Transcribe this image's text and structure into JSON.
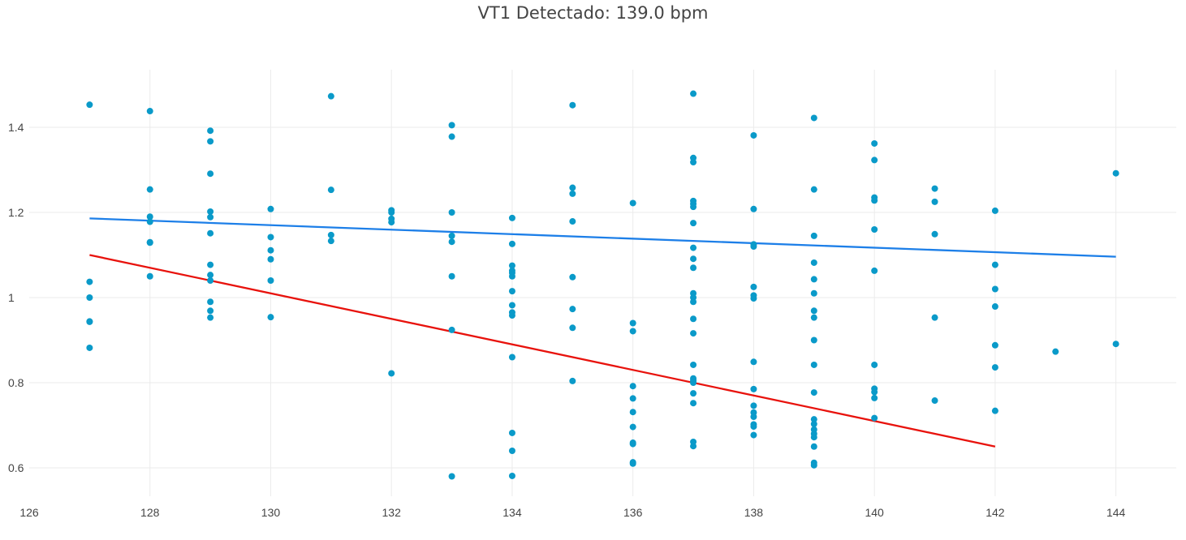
{
  "chart_data": {
    "type": "scatter",
    "title": "VT1 Detectado: 139.0 bpm",
    "xlabel": "",
    "ylabel": "",
    "xlim": [
      126,
      145
    ],
    "ylim": [
      0.56,
      1.54
    ],
    "x_ticks": [
      126,
      128,
      130,
      132,
      134,
      136,
      138,
      140,
      142,
      144
    ],
    "y_ticks": [
      0.6,
      0.8,
      1,
      1.2,
      1.4
    ],
    "x_tick_labels": [
      "126",
      "128",
      "130",
      "132",
      "134",
      "136",
      "138",
      "140",
      "142",
      "144"
    ],
    "y_tick_labels": [
      "0.6",
      "0.8",
      "1",
      "1.2",
      "1.4"
    ],
    "grid": true,
    "colors": {
      "points": "#0a9ac9",
      "blue_line": "#1d7fe8",
      "red_line": "#e8120c",
      "grid": "#ebebeb",
      "text": "#444444"
    },
    "points": [
      [
        127,
        1.453
      ],
      [
        127,
        1.037
      ],
      [
        127,
        1.0
      ],
      [
        127,
        0.943
      ],
      [
        127,
        0.944
      ],
      [
        127,
        0.882
      ],
      [
        128,
        1.438
      ],
      [
        128,
        1.254
      ],
      [
        128,
        1.19
      ],
      [
        128,
        1.178
      ],
      [
        128,
        1.13
      ],
      [
        128,
        1.129
      ],
      [
        128,
        1.05
      ],
      [
        129,
        1.392
      ],
      [
        129,
        1.367
      ],
      [
        129,
        1.291
      ],
      [
        129,
        1.202
      ],
      [
        129,
        1.189
      ],
      [
        129,
        1.151
      ],
      [
        129,
        1.077
      ],
      [
        129,
        1.053
      ],
      [
        129,
        1.04
      ],
      [
        129,
        0.99
      ],
      [
        129,
        0.969
      ],
      [
        129,
        0.953
      ],
      [
        130,
        1.208
      ],
      [
        130,
        1.142
      ],
      [
        130,
        1.111
      ],
      [
        130,
        1.09
      ],
      [
        130,
        1.04
      ],
      [
        130,
        0.954
      ],
      [
        131,
        1.473
      ],
      [
        131,
        1.253
      ],
      [
        131,
        1.147
      ],
      [
        131,
        1.133
      ],
      [
        132,
        1.205
      ],
      [
        132,
        1.2
      ],
      [
        132,
        1.185
      ],
      [
        132,
        1.177
      ],
      [
        132,
        0.822
      ],
      [
        133,
        1.405
      ],
      [
        133,
        1.378
      ],
      [
        133,
        1.2
      ],
      [
        133,
        1.145
      ],
      [
        133,
        1.131
      ],
      [
        133,
        1.05
      ],
      [
        133,
        0.924
      ],
      [
        133,
        0.58
      ],
      [
        134,
        1.187
      ],
      [
        134,
        1.126
      ],
      [
        134,
        1.075
      ],
      [
        134,
        1.063
      ],
      [
        134,
        1.058
      ],
      [
        134,
        1.05
      ],
      [
        134,
        1.015
      ],
      [
        134,
        0.982
      ],
      [
        134,
        0.965
      ],
      [
        134,
        0.958
      ],
      [
        134,
        0.86
      ],
      [
        134,
        0.682
      ],
      [
        134,
        0.64
      ],
      [
        134,
        0.581
      ],
      [
        135,
        1.452
      ],
      [
        135,
        1.258
      ],
      [
        135,
        1.244
      ],
      [
        135,
        1.179
      ],
      [
        135,
        1.048
      ],
      [
        135,
        0.973
      ],
      [
        135,
        0.929
      ],
      [
        135,
        0.804
      ],
      [
        136,
        1.222
      ],
      [
        136,
        0.94
      ],
      [
        136,
        0.921
      ],
      [
        136,
        0.792
      ],
      [
        136,
        0.763
      ],
      [
        136,
        0.731
      ],
      [
        136,
        0.696
      ],
      [
        136,
        0.659
      ],
      [
        136,
        0.656
      ],
      [
        136,
        0.613
      ],
      [
        136,
        0.61
      ],
      [
        137,
        1.479
      ],
      [
        137,
        1.328
      ],
      [
        137,
        1.318
      ],
      [
        137,
        1.227
      ],
      [
        137,
        1.22
      ],
      [
        137,
        1.213
      ],
      [
        137,
        1.175
      ],
      [
        137,
        1.117
      ],
      [
        137,
        1.091
      ],
      [
        137,
        1.07
      ],
      [
        137,
        1.01
      ],
      [
        137,
        1.0
      ],
      [
        137,
        0.99
      ],
      [
        137,
        0.95
      ],
      [
        137,
        0.916
      ],
      [
        137,
        0.842
      ],
      [
        137,
        0.81
      ],
      [
        137,
        0.805
      ],
      [
        137,
        0.8
      ],
      [
        137,
        0.775
      ],
      [
        137,
        0.752
      ],
      [
        137,
        0.661
      ],
      [
        137,
        0.651
      ],
      [
        138,
        1.381
      ],
      [
        138,
        1.208
      ],
      [
        138,
        1.125
      ],
      [
        138,
        1.12
      ],
      [
        138,
        1.025
      ],
      [
        138,
        1.005
      ],
      [
        138,
        0.998
      ],
      [
        138,
        0.849
      ],
      [
        138,
        0.785
      ],
      [
        138,
        0.746
      ],
      [
        138,
        0.73
      ],
      [
        138,
        0.72
      ],
      [
        138,
        0.702
      ],
      [
        138,
        0.697
      ],
      [
        138,
        0.677
      ],
      [
        139,
        1.422
      ],
      [
        139,
        1.254
      ],
      [
        139,
        1.145
      ],
      [
        139,
        1.082
      ],
      [
        139,
        1.043
      ],
      [
        139,
        1.01
      ],
      [
        139,
        0.969
      ],
      [
        139,
        0.953
      ],
      [
        139,
        0.9
      ],
      [
        139,
        0.842
      ],
      [
        139,
        0.777
      ],
      [
        139,
        0.714
      ],
      [
        139,
        0.703
      ],
      [
        139,
        0.69
      ],
      [
        139,
        0.68
      ],
      [
        139,
        0.672
      ],
      [
        139,
        0.65
      ],
      [
        139,
        0.612
      ],
      [
        139,
        0.606
      ],
      [
        140,
        1.362
      ],
      [
        140,
        1.323
      ],
      [
        140,
        1.235
      ],
      [
        140,
        1.228
      ],
      [
        140,
        1.16
      ],
      [
        140,
        1.063
      ],
      [
        140,
        0.842
      ],
      [
        140,
        0.786
      ],
      [
        140,
        0.778
      ],
      [
        140,
        0.764
      ],
      [
        140,
        0.717
      ],
      [
        141,
        1.256
      ],
      [
        141,
        1.225
      ],
      [
        141,
        1.149
      ],
      [
        141,
        0.953
      ],
      [
        141,
        0.758
      ],
      [
        142,
        1.204
      ],
      [
        142,
        1.077
      ],
      [
        142,
        1.02
      ],
      [
        142,
        0.979
      ],
      [
        142,
        0.888
      ],
      [
        142,
        0.836
      ],
      [
        142,
        0.734
      ],
      [
        143,
        0.873
      ],
      [
        144,
        1.292
      ],
      [
        144,
        0.891
      ]
    ],
    "series": [
      {
        "type": "line",
        "color": "#1d7fe8",
        "x": [
          127,
          144
        ],
        "y": [
          1.186,
          1.096
        ]
      },
      {
        "type": "line",
        "color": "#e8120c",
        "x": [
          127,
          142
        ],
        "y": [
          1.1,
          0.65
        ]
      }
    ]
  }
}
